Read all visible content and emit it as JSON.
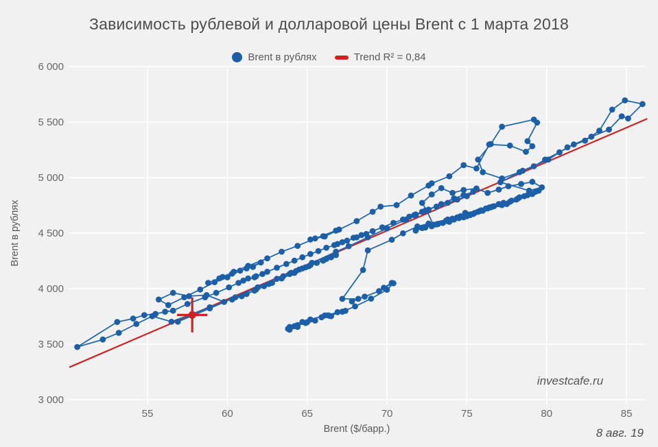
{
  "title": "Зависимость рублевой и долларовой цены Brent с 1 марта 2018",
  "watermark": "investcafe.ru",
  "date_note": "8 авг. 19",
  "legend": [
    {
      "marker": "circle",
      "label": "Brent в рублях",
      "color": "#1b5fa8"
    },
    {
      "marker": "dash",
      "label": "Trend R² = 0,84",
      "color": "#d32121"
    }
  ],
  "colors": {
    "background": "#f1f1f2",
    "grid": "#ffffff",
    "tick_text": "#666666",
    "axis_title_text": "#595959",
    "series_blue": "#1b5fa8",
    "line_blue": "#2268ae",
    "trend_red": "#d32121"
  },
  "chart_data": {
    "type": "scatter",
    "title": "Зависимость рублевой и долларовой цены Brent с 1 марта 2018",
    "xlabel": "Brent ($/барр.)",
    "ylabel": "Brent в рублях",
    "xlim": [
      50,
      86.5
    ],
    "ylim": [
      3000,
      6000
    ],
    "grid": true,
    "legend_position": "top",
    "x_ticks": [
      {
        "v": 55,
        "label": "55"
      },
      {
        "v": 60,
        "label": "60"
      },
      {
        "v": 65,
        "label": "65"
      },
      {
        "v": 70,
        "label": "70"
      },
      {
        "v": 75,
        "label": "75"
      },
      {
        "v": 80,
        "label": "80"
      },
      {
        "v": 85,
        "label": "85"
      }
    ],
    "y_ticks": [
      {
        "v": 3000,
        "label": "3 000"
      },
      {
        "v": 3500,
        "label": "3 500"
      },
      {
        "v": 4000,
        "label": "4 000"
      },
      {
        "v": 4500,
        "label": "4 500"
      },
      {
        "v": 5000,
        "label": "5 000"
      },
      {
        "v": 5500,
        "label": "5 500"
      },
      {
        "v": 6000,
        "label": "6 000"
      }
    ],
    "trend": {
      "label": "Trend R² = 0,84",
      "r2": 0.84,
      "color": "#d32121",
      "from": [
        50.1,
        3292
      ],
      "to": [
        86.3,
        5530
      ]
    },
    "last_point_marker": {
      "x": 57.8,
      "y": 3763,
      "arm_x": 0.95,
      "arm_y": 157,
      "color": "#d32121",
      "note": "красный крест — последняя точка (8 авг. 19)"
    },
    "series": [
      {
        "name": "Brent в рублях",
        "color": "#1b5fa8",
        "connected": true,
        "points": [
          [
            63.9,
            3630
          ],
          [
            64.4,
            3655
          ],
          [
            63.8,
            3638
          ],
          [
            64.2,
            3662
          ],
          [
            65.0,
            3698
          ],
          [
            65.5,
            3712
          ],
          [
            64.9,
            3690
          ],
          [
            64.4,
            3672
          ],
          [
            63.9,
            3655
          ],
          [
            64.7,
            3700
          ],
          [
            65.2,
            3722
          ],
          [
            66.1,
            3758
          ],
          [
            66.5,
            3752
          ],
          [
            65.9,
            3742
          ],
          [
            66.3,
            3760
          ],
          [
            66.9,
            3788
          ],
          [
            67.4,
            3800
          ],
          [
            66.4,
            3755
          ],
          [
            67.2,
            3792
          ],
          [
            68.0,
            3840
          ],
          [
            69.0,
            3910
          ],
          [
            70.0,
            3990
          ],
          [
            70.4,
            4048
          ],
          [
            69.8,
            4008
          ],
          [
            70.3,
            4052
          ],
          [
            69.5,
            3978
          ],
          [
            68.6,
            3928
          ],
          [
            67.8,
            3885
          ],
          [
            68.2,
            3908
          ],
          [
            67.2,
            3908
          ],
          [
            68.5,
            4168
          ],
          [
            68.8,
            4345
          ],
          [
            70.3,
            4440
          ],
          [
            71.0,
            4498
          ],
          [
            71.9,
            4560
          ],
          [
            72.6,
            4585
          ],
          [
            73.8,
            4622
          ],
          [
            74.6,
            4652
          ],
          [
            73.9,
            4602
          ],
          [
            74.9,
            4682
          ],
          [
            75.9,
            4705
          ],
          [
            74.4,
            4642
          ],
          [
            73.7,
            4612
          ],
          [
            74.1,
            4630
          ],
          [
            75.0,
            4662
          ],
          [
            76.4,
            4730
          ],
          [
            77.5,
            4762
          ],
          [
            78.1,
            4802
          ],
          [
            79.5,
            4882
          ],
          [
            79.1,
            4852
          ],
          [
            78.3,
            4822
          ],
          [
            77.0,
            4762
          ],
          [
            76.2,
            4722
          ],
          [
            77.3,
            4772
          ],
          [
            78.6,
            4832
          ],
          [
            79.3,
            4872
          ],
          [
            78.8,
            4842
          ],
          [
            77.8,
            4792
          ],
          [
            76.5,
            4732
          ],
          [
            75.4,
            4672
          ],
          [
            74.8,
            4642
          ],
          [
            75.7,
            4692
          ],
          [
            76.7,
            4742
          ],
          [
            77.7,
            4782
          ],
          [
            78.2,
            4812
          ],
          [
            77.2,
            4752
          ],
          [
            76.0,
            4702
          ],
          [
            75.0,
            4652
          ],
          [
            74.2,
            4622
          ],
          [
            73.5,
            4592
          ],
          [
            72.8,
            4562
          ],
          [
            73.2,
            4582
          ],
          [
            74.0,
            4618
          ],
          [
            74.7,
            4648
          ],
          [
            75.5,
            4682
          ],
          [
            76.3,
            4722
          ],
          [
            77.1,
            4758
          ],
          [
            76.6,
            4738
          ],
          [
            75.8,
            4698
          ],
          [
            75.2,
            4662
          ],
          [
            74.5,
            4635
          ],
          [
            73.8,
            4608
          ],
          [
            73.1,
            4578
          ],
          [
            72.4,
            4550
          ],
          [
            71.8,
            4522
          ],
          [
            72.2,
            4545
          ],
          [
            72.9,
            4575
          ],
          [
            72.5,
            4700
          ],
          [
            72.2,
            4772
          ],
          [
            72.8,
            4848
          ],
          [
            73.4,
            4905
          ],
          [
            74.1,
            4862
          ],
          [
            74.8,
            4888
          ],
          [
            75.6,
            4902
          ],
          [
            76.3,
            4862
          ],
          [
            77.0,
            4892
          ],
          [
            77.6,
            4922
          ],
          [
            78.4,
            4942
          ],
          [
            79.1,
            4962
          ],
          [
            79.7,
            4912
          ],
          [
            78.9,
            4882
          ],
          [
            77.1,
            4958
          ],
          [
            78.5,
            5062
          ],
          [
            80.1,
            5162
          ],
          [
            81.3,
            5272
          ],
          [
            82.4,
            5332
          ],
          [
            83.3,
            5422
          ],
          [
            84.1,
            5612
          ],
          [
            84.9,
            5695
          ],
          [
            86.0,
            5662
          ],
          [
            85.1,
            5532
          ],
          [
            84.7,
            5552
          ],
          [
            83.9,
            5432
          ],
          [
            82.8,
            5368
          ],
          [
            81.7,
            5298
          ],
          [
            80.8,
            5228
          ],
          [
            79.9,
            5162
          ],
          [
            79.2,
            5102
          ],
          [
            78.3,
            5048
          ],
          [
            77.2,
            4992
          ],
          [
            76.0,
            5048
          ],
          [
            75.7,
            5162
          ],
          [
            76.5,
            5302
          ],
          [
            77.2,
            5458
          ],
          [
            79.2,
            5522
          ],
          [
            79.4,
            5495
          ],
          [
            78.8,
            5328
          ],
          [
            79.1,
            5282
          ],
          [
            78.7,
            5232
          ],
          [
            77.7,
            5288
          ],
          [
            76.4,
            5298
          ],
          [
            75.6,
            5082
          ],
          [
            74.8,
            5112
          ],
          [
            73.9,
            5012
          ],
          [
            72.8,
            4948
          ],
          [
            72.6,
            4928
          ],
          [
            71.5,
            4838
          ],
          [
            70.6,
            4752
          ],
          [
            69.6,
            4738
          ],
          [
            69.1,
            4692
          ],
          [
            68.1,
            4608
          ],
          [
            67.0,
            4532
          ],
          [
            66.1,
            4470
          ],
          [
            65.2,
            4442
          ],
          [
            66.0,
            4472
          ],
          [
            66.8,
            4522
          ],
          [
            65.5,
            4452
          ],
          [
            64.4,
            4385
          ],
          [
            63.4,
            4332
          ],
          [
            62.5,
            4272
          ],
          [
            61.3,
            4205
          ],
          [
            60.4,
            4152
          ],
          [
            59.7,
            4105
          ],
          [
            58.8,
            4052
          ],
          [
            59.5,
            4092
          ],
          [
            60.3,
            4135
          ],
          [
            61.2,
            4182
          ],
          [
            62.1,
            4235
          ],
          [
            61.6,
            4195
          ],
          [
            60.8,
            4162
          ],
          [
            60.0,
            4102
          ],
          [
            59.2,
            4058
          ],
          [
            58.3,
            3992
          ],
          [
            57.3,
            3922
          ],
          [
            56.3,
            3852
          ],
          [
            55.7,
            3902
          ],
          [
            56.6,
            3962
          ],
          [
            57.6,
            3932
          ],
          [
            58.7,
            3942
          ],
          [
            59.8,
            3880
          ],
          [
            58.9,
            3832
          ],
          [
            57.8,
            3772
          ],
          [
            56.5,
            3702
          ],
          [
            55.3,
            3752
          ],
          [
            54.3,
            3682
          ],
          [
            53.2,
            3602
          ],
          [
            52.2,
            3542
          ],
          [
            50.6,
            3475
          ],
          [
            53.1,
            3700
          ],
          [
            54.1,
            3730
          ],
          [
            54.8,
            3762
          ],
          [
            55.5,
            3772
          ],
          [
            56.1,
            3792
          ],
          [
            56.6,
            3802
          ],
          [
            57.5,
            3862
          ],
          [
            58.6,
            3922
          ],
          [
            59.3,
            3962
          ],
          [
            60.1,
            4012
          ],
          [
            60.7,
            4052
          ],
          [
            61.3,
            4092
          ],
          [
            61.0,
            4072
          ],
          [
            61.7,
            4102
          ],
          [
            62.2,
            4132
          ],
          [
            61.8,
            4112
          ],
          [
            62.5,
            4152
          ],
          [
            63.1,
            4188
          ],
          [
            63.7,
            4222
          ],
          [
            64.2,
            4252
          ],
          [
            64.7,
            4282
          ],
          [
            65.2,
            4312
          ],
          [
            65.7,
            4338
          ],
          [
            66.2,
            4368
          ],
          [
            66.7,
            4392
          ],
          [
            67.2,
            4418
          ],
          [
            66.9,
            4402
          ],
          [
            67.5,
            4432
          ],
          [
            68.1,
            4462
          ],
          [
            68.7,
            4492
          ],
          [
            67.9,
            4458
          ],
          [
            68.4,
            4482
          ],
          [
            69.1,
            4518
          ],
          [
            69.7,
            4552
          ],
          [
            70.4,
            4592
          ],
          [
            71.0,
            4622
          ],
          [
            71.4,
            4648
          ],
          [
            71.8,
            4668
          ],
          [
            72.2,
            4692
          ],
          [
            71.7,
            4662
          ],
          [
            72.4,
            4702
          ],
          [
            73.1,
            4738
          ],
          [
            73.8,
            4772
          ],
          [
            74.4,
            4802
          ],
          [
            75.0,
            4832
          ],
          [
            75.4,
            4872
          ],
          [
            74.8,
            4842
          ],
          [
            74.2,
            4812
          ],
          [
            73.4,
            4762
          ],
          [
            72.4,
            4702
          ],
          [
            71.8,
            4662
          ],
          [
            72.6,
            4712
          ],
          [
            71.2,
            4622
          ],
          [
            70.0,
            4542
          ],
          [
            68.8,
            4462
          ],
          [
            67.6,
            4382
          ],
          [
            66.8,
            4332
          ],
          [
            65.3,
            4232
          ],
          [
            64.0,
            4142
          ],
          [
            62.8,
            4052
          ],
          [
            61.7,
            3982
          ],
          [
            60.9,
            3932
          ],
          [
            60.3,
            3902
          ],
          [
            61.2,
            3952
          ],
          [
            62.3,
            4022
          ],
          [
            61.8,
            3992
          ],
          [
            62.6,
            4042
          ],
          [
            63.4,
            4092
          ],
          [
            64.2,
            4142
          ],
          [
            65.1,
            4202
          ],
          [
            66.0,
            4252
          ],
          [
            66.5,
            4282
          ],
          [
            66.8,
            4302
          ],
          [
            66.2,
            4268
          ],
          [
            65.6,
            4232
          ],
          [
            64.9,
            4192
          ],
          [
            64.3,
            4158
          ],
          [
            63.9,
            4132
          ],
          [
            64.5,
            4172
          ],
          [
            65.2,
            4212
          ],
          [
            64.7,
            4182
          ],
          [
            64.0,
            4142
          ],
          [
            63.5,
            4112
          ],
          [
            63.1,
            4088
          ],
          [
            61.9,
            4012
          ],
          [
            60.5,
            3922
          ],
          [
            58.9,
            3822
          ],
          [
            56.9,
            3702
          ],
          [
            57.8,
            3763
          ]
        ]
      }
    ]
  }
}
